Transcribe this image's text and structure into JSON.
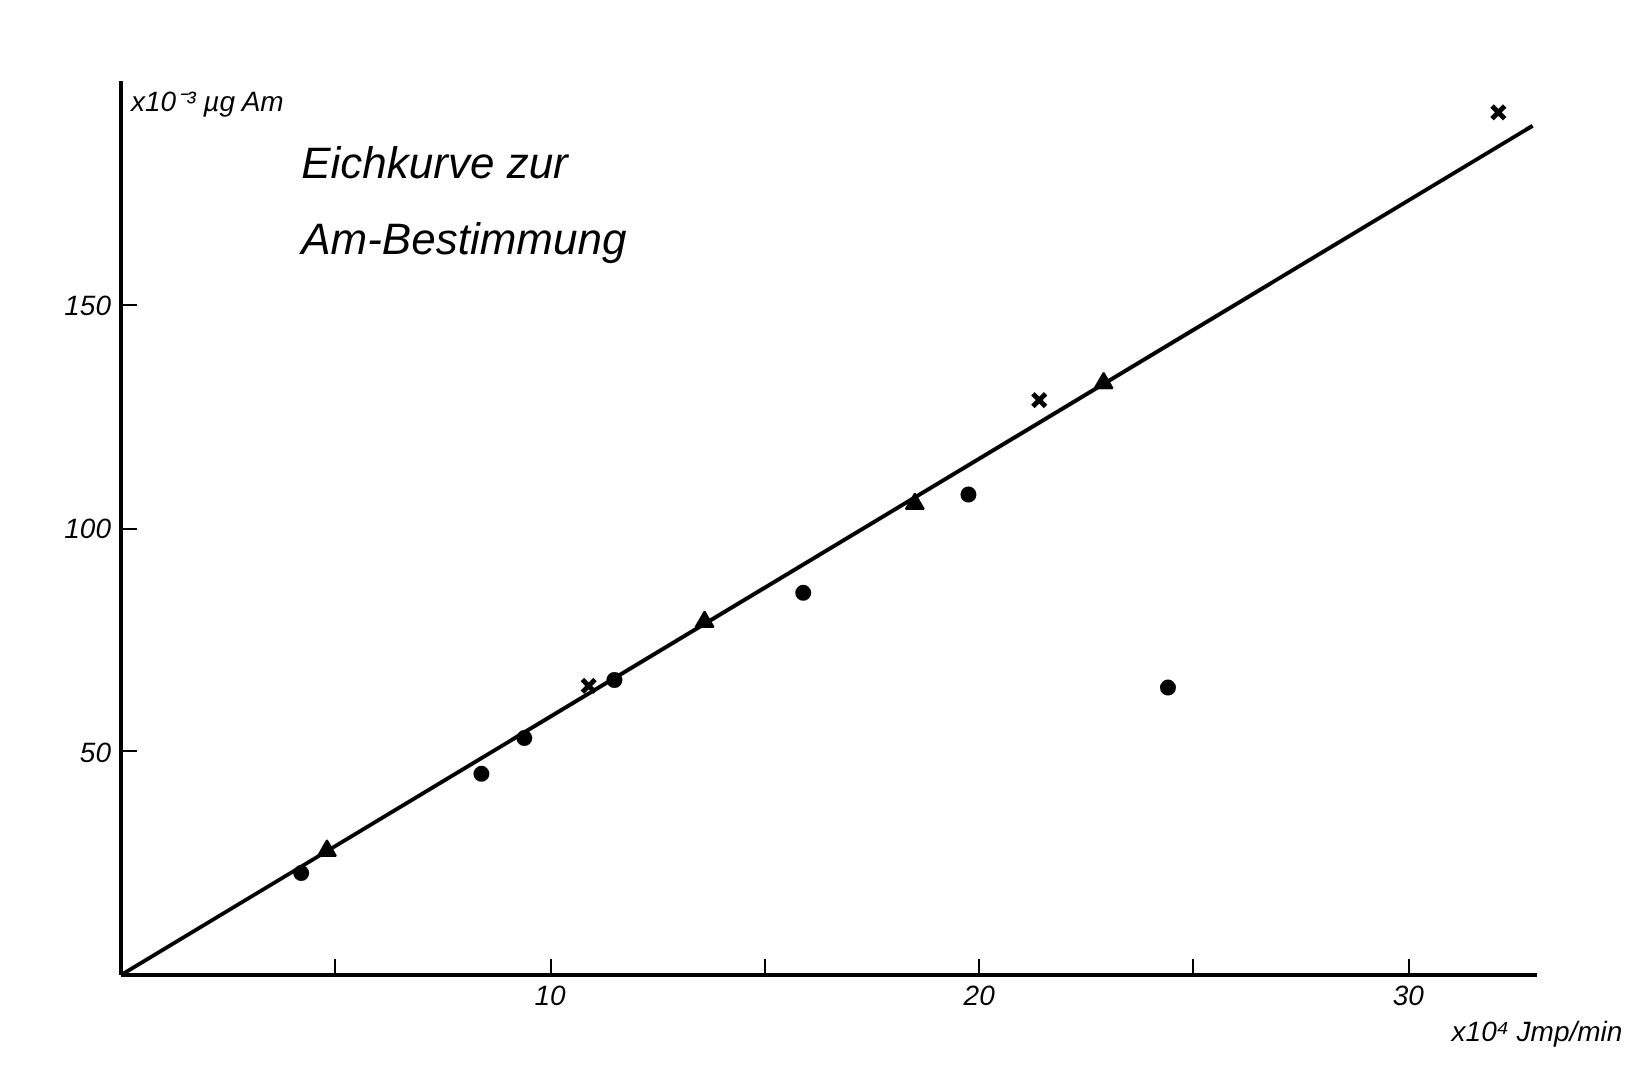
{
  "chart_data": {
    "type": "scatter",
    "title": "Eichkurve zur Am-Bestimmung",
    "xlabel": "x10⁴ Jmp/min",
    "ylabel": "x10⁻³ µg Am",
    "xlim": [
      0,
      33
    ],
    "ylim": [
      0,
      200
    ],
    "xticks": [
      {
        "value": 5,
        "label": null
      },
      10,
      {
        "value": 15,
        "label": null
      },
      20,
      {
        "value": 25,
        "label": null
      },
      30
    ],
    "yticks": [
      50,
      100,
      150
    ],
    "grid": false,
    "series": [
      {
        "color": "#000000",
        "marker": "circle",
        "x": [
          4.2,
          8.4,
          9.4,
          11.5,
          15.9,
          19.75,
          24.4
        ],
        "values": [
          22.8,
          45,
          53,
          66,
          85.5,
          107.5,
          64.3
        ]
      },
      {
        "color": "#000000",
        "marker": "triangle",
        "x": [
          4.8,
          13.6,
          18.5,
          22.9
        ],
        "values": [
          27.8,
          79,
          105.4,
          132.4
        ]
      },
      {
        "color": "#000000",
        "marker": "cross",
        "x": [
          10.9,
          21.4,
          32.1
        ],
        "values": [
          64.7,
          128.6,
          193
        ]
      },
      {
        "type": "line",
        "color": "#000000",
        "marker": "none",
        "line_style": "solid",
        "x": [
          0,
          32.9
        ],
        "values": [
          0,
          190
        ]
      }
    ]
  }
}
